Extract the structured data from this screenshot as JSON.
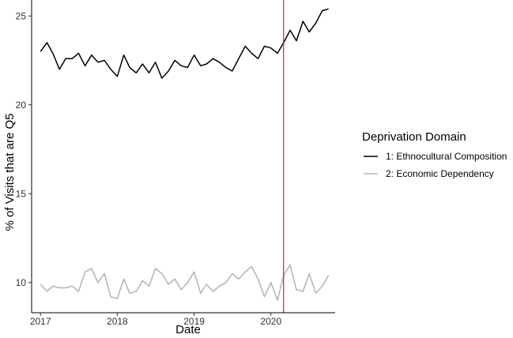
{
  "chart_data": {
    "type": "line",
    "xlabel": "Date",
    "ylabel": "% of Visits that are Q5",
    "xlim": [
      "2016-11-20",
      "2020-11-01"
    ],
    "ylim": [
      8.3,
      25.9
    ],
    "x_ticks": [
      "2017-01-01",
      "2018-01-01",
      "2019-01-01",
      "2020-01-01"
    ],
    "x_tick_labels": [
      "2017",
      "2018",
      "2019",
      "2020"
    ],
    "y_ticks": [
      10,
      15,
      20,
      25
    ],
    "y_tick_labels": [
      "10",
      "15",
      "20",
      "25"
    ],
    "grid": false,
    "legend": {
      "title": "Deprivation Domain",
      "placement": "right"
    },
    "vline": {
      "x": "2020-03-01",
      "color": "#e41a1c"
    },
    "x": [
      "2017-01-01",
      "2017-02-01",
      "2017-03-01",
      "2017-04-01",
      "2017-05-01",
      "2017-06-01",
      "2017-07-01",
      "2017-08-01",
      "2017-09-01",
      "2017-10-01",
      "2017-11-01",
      "2017-12-01",
      "2018-01-01",
      "2018-02-01",
      "2018-03-01",
      "2018-04-01",
      "2018-05-01",
      "2018-06-01",
      "2018-07-01",
      "2018-08-01",
      "2018-09-01",
      "2018-10-01",
      "2018-11-01",
      "2018-12-01",
      "2019-01-01",
      "2019-02-01",
      "2019-03-01",
      "2019-04-01",
      "2019-05-01",
      "2019-06-01",
      "2019-07-01",
      "2019-08-01",
      "2019-09-01",
      "2019-10-01",
      "2019-11-01",
      "2019-12-01",
      "2020-01-01",
      "2020-02-01",
      "2020-03-01",
      "2020-04-01",
      "2020-05-01",
      "2020-06-01",
      "2020-07-01",
      "2020-08-01",
      "2020-09-01",
      "2020-10-01"
    ],
    "series": [
      {
        "name": "1: Ethnocultural Composition",
        "color": "#000000",
        "values": [
          23.0,
          23.5,
          22.9,
          22.0,
          22.6,
          22.6,
          22.9,
          22.2,
          22.8,
          22.4,
          22.5,
          22.0,
          21.6,
          22.8,
          22.1,
          21.8,
          22.3,
          21.8,
          22.4,
          21.5,
          21.9,
          22.5,
          22.2,
          22.1,
          22.8,
          22.2,
          22.3,
          22.6,
          22.4,
          22.1,
          21.9,
          22.6,
          23.3,
          22.9,
          22.6,
          23.3,
          23.2,
          22.9,
          23.5,
          24.2,
          23.6,
          24.7,
          24.1,
          24.6,
          25.3,
          25.4
        ]
      },
      {
        "name": "2: Economic Dependency",
        "color": "#b3b3b3",
        "values": [
          9.9,
          9.5,
          9.8,
          9.7,
          9.7,
          9.8,
          9.5,
          10.6,
          10.8,
          10.0,
          10.5,
          9.2,
          9.1,
          10.2,
          9.4,
          9.5,
          10.1,
          9.8,
          10.8,
          10.5,
          9.9,
          10.2,
          9.6,
          10.0,
          10.6,
          9.4,
          9.9,
          9.5,
          9.8,
          10.0,
          10.5,
          10.2,
          10.6,
          10.9,
          10.2,
          9.2,
          10.0,
          9.0,
          10.4,
          11.0,
          9.6,
          9.5,
          10.5,
          9.4,
          9.8,
          10.4
        ]
      }
    ]
  }
}
